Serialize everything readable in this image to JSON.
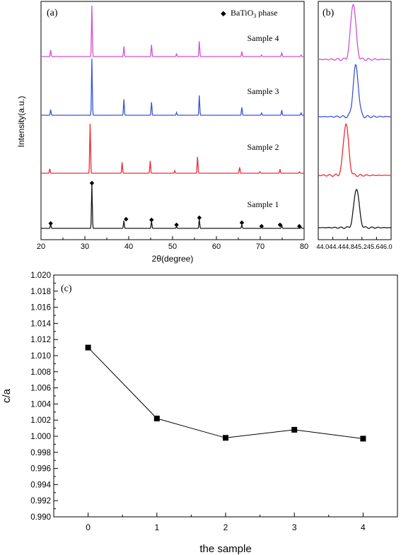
{
  "chart_data": [
    {
      "panel": "(a)",
      "type": "line",
      "xlabel": "2θ(degree)",
      "ylabel": "Intensity(a.u.)",
      "xlim": [
        20,
        80
      ],
      "xticks": [
        20,
        30,
        40,
        50,
        60,
        70,
        80
      ],
      "legend": {
        "marker": "◆",
        "label": "BaTiO",
        "sub": "3",
        "suffix": " phase"
      },
      "series": [
        {
          "name": "Sample 4",
          "color": "#d24fd6",
          "peaks": [
            [
              22.2,
              0.13
            ],
            [
              31.6,
              1.0
            ],
            [
              38.9,
              0.2
            ],
            [
              45.2,
              0.23
            ],
            [
              50.9,
              0.05
            ],
            [
              56.1,
              0.3
            ],
            [
              65.8,
              0.1
            ],
            [
              70.3,
              0.03
            ],
            [
              74.9,
              0.08
            ],
            [
              79.3,
              0.03
            ]
          ]
        },
        {
          "name": "Sample 3",
          "color": "#3b55d6",
          "peaks": [
            [
              22.2,
              0.1
            ],
            [
              31.6,
              1.0
            ],
            [
              38.9,
              0.28
            ],
            [
              45.2,
              0.23
            ],
            [
              50.9,
              0.05
            ],
            [
              56.1,
              0.35
            ],
            [
              65.8,
              0.14
            ],
            [
              70.3,
              0.04
            ],
            [
              74.9,
              0.09
            ],
            [
              79.3,
              0.04
            ]
          ]
        },
        {
          "name": "Sample 2",
          "color": "#ee2b34",
          "peaks": [
            [
              22.0,
              0.09
            ],
            [
              31.2,
              1.0
            ],
            [
              38.5,
              0.22
            ],
            [
              44.9,
              0.25
            ],
            [
              50.5,
              0.05
            ],
            [
              55.7,
              0.33
            ],
            [
              65.3,
              0.12
            ],
            [
              69.9,
              0.03
            ],
            [
              74.5,
              0.08
            ],
            [
              78.9,
              0.03
            ]
          ]
        },
        {
          "name": "Sample 1",
          "color": "#1a1a1a",
          "peaks": [
            [
              22.2,
              0.09
            ],
            [
              31.6,
              1.0
            ],
            [
              38.9,
              0.17
            ],
            [
              45.2,
              0.16
            ],
            [
              50.9,
              0.04
            ],
            [
              56.1,
              0.2
            ],
            [
              65.8,
              0.08
            ],
            [
              70.3,
              0.03
            ],
            [
              74.9,
              0.07
            ],
            [
              79.3,
              0.03
            ]
          ]
        }
      ],
      "phase_markers_x": [
        22.2,
        31.6,
        39.4,
        45.2,
        50.9,
        56.1,
        65.8,
        70.3,
        74.5,
        78.9
      ]
    },
    {
      "panel": "(b)",
      "type": "line",
      "xlim": [
        44.0,
        46.0
      ],
      "xtick_labels": "44.044.444.845.245.646.0",
      "series": [
        {
          "color": "#d24fd6",
          "peak_x": 44.96
        },
        {
          "color": "#3b55d6",
          "peak_x": 45.03
        },
        {
          "color": "#ee2b34",
          "peak_x": 44.76
        },
        {
          "color": "#1a1a1a",
          "peak_x": 45.05
        }
      ]
    },
    {
      "panel": "(c)",
      "type": "line",
      "xlabel": "the sample",
      "ylabel": "c/a",
      "xlim": [
        -0.5,
        4.5
      ],
      "xticks": [
        0,
        1,
        2,
        3,
        4
      ],
      "ylim": [
        0.99,
        1.02
      ],
      "yticks": [
        "0.990",
        "0.992",
        "0.994",
        "0.996",
        "0.998",
        "1.000",
        "1.002",
        "1.004",
        "1.006",
        "1.008",
        "1.010",
        "1.012",
        "1.014",
        "1.016",
        "1.018",
        "1.020"
      ],
      "x": [
        0,
        1,
        2,
        3,
        4
      ],
      "y": [
        1.011,
        1.0022,
        0.9998,
        1.0008,
        0.9997
      ]
    }
  ]
}
